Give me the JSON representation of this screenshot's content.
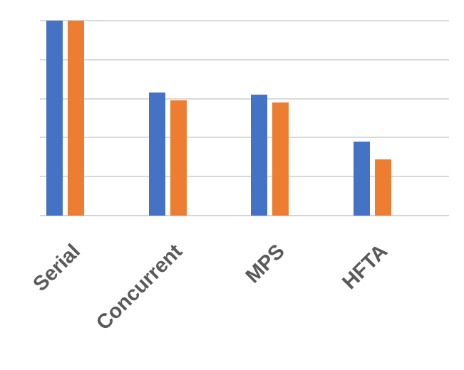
{
  "chart_data": {
    "type": "bar",
    "title": "",
    "xlabel": "",
    "ylabel": "",
    "categories": [
      "Serial",
      "Concurrent",
      "MPS",
      "HFTA"
    ],
    "series": [
      {
        "name": "blue",
        "color": "#4472C4",
        "values": [
          1.0,
          0.63,
          0.62,
          0.38
        ]
      },
      {
        "name": "orange",
        "color": "#ED7D31",
        "values": [
          1.0,
          0.59,
          0.58,
          0.29
        ]
      }
    ],
    "ylim": [
      0,
      1
    ],
    "gridline_step": 0.2,
    "grid": "horizontal-only",
    "legend_position": "none",
    "axis_tick_labels": {
      "x_visible": true,
      "y_visible": false
    },
    "category_label_rotation_deg": -45,
    "styles": {
      "background": "#FFFFFF",
      "gridline": "#D9D9D9",
      "axis_line": "#D4D4D4",
      "category_label": "#595959"
    }
  }
}
